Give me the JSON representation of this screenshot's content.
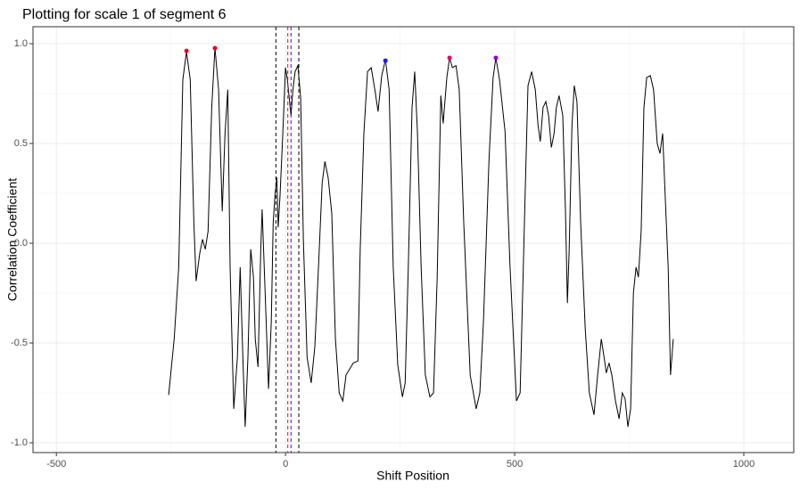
{
  "chart_data": {
    "type": "line",
    "title": "Plotting for scale 1 of segment 6",
    "x_label": "Shift Position",
    "y_label": "Correlation Coefficient",
    "xlim": [
      -551,
      1109
    ],
    "ylim": [
      -1.049,
      1.085
    ],
    "xticks": [
      -500,
      0,
      500,
      1000
    ],
    "yticks": [
      {
        "value": -1,
        "label": "-1.0"
      },
      {
        "value": -0.5,
        "label": "-0.5"
      },
      {
        "value": 0,
        "label": "0.0"
      },
      {
        "value": 0.5,
        "label": "0.5"
      },
      {
        "value": 1,
        "label": "1.0"
      }
    ],
    "xminor": [
      -250,
      250,
      750
    ],
    "yminor": [
      -0.75,
      -0.25,
      0.25,
      0.75
    ],
    "grid": true,
    "series": [
      {
        "color": "#000000",
        "x": [
          -255,
          -243,
          -233,
          -224,
          -216,
          -208,
          -200,
          -195,
          -187,
          -181,
          -175,
          -169,
          -161,
          -154,
          -146,
          -138,
          -132,
          -126,
          -121,
          -113,
          -105,
          -99,
          -93,
          -88,
          -82,
          -76,
          -70,
          -66,
          -60,
          -54,
          -51,
          -45,
          -37,
          -31,
          -27,
          -23,
          -19,
          -16,
          -12,
          -6,
          0,
          4,
          8,
          12,
          16,
          21,
          27,
          33,
          39,
          47,
          56,
          64,
          72,
          80,
          86,
          93,
          101,
          109,
          117,
          125,
          132,
          140,
          148,
          158,
          163,
          171,
          179,
          187,
          195,
          202,
          210,
          218,
          226,
          235,
          245,
          255,
          261,
          268,
          276,
          282,
          288,
          296,
          305,
          315,
          323,
          331,
          339,
          344,
          352,
          358,
          364,
          372,
          379,
          389,
          403,
          416,
          424,
          432,
          444,
          453,
          459,
          467,
          479,
          490,
          504,
          512,
          523,
          529,
          537,
          545,
          551,
          556,
          562,
          568,
          574,
          580,
          586,
          591,
          597,
          605,
          611,
          615,
          619,
          625,
          630,
          636,
          644,
          654,
          663,
          673,
          681,
          689,
          695,
          700,
          706,
          712,
          720,
          728,
          735,
          741,
          747,
          753,
          759,
          765,
          770,
          776,
          782,
          788,
          796,
          803,
          811,
          817,
          823,
          829,
          835,
          840,
          846
        ],
        "values": [
          -0.76,
          -0.48,
          -0.12,
          0.82,
          0.96,
          0.82,
          0.1,
          -0.19,
          -0.05,
          0.02,
          -0.03,
          0.06,
          0.68,
          0.98,
          0.77,
          0.16,
          0.55,
          0.77,
          -0.12,
          -0.83,
          -0.57,
          -0.12,
          -0.57,
          -0.92,
          -0.57,
          -0.03,
          -0.17,
          -0.48,
          -0.62,
          -0.03,
          0.17,
          -0.21,
          -0.73,
          -0.39,
          0.1,
          0.24,
          0.33,
          0.08,
          0.24,
          0.55,
          0.88,
          0.82,
          0.73,
          0.64,
          0.77,
          0.86,
          0.89,
          0.73,
          0.01,
          -0.57,
          -0.7,
          -0.52,
          -0.12,
          0.3,
          0.41,
          0.33,
          0.15,
          -0.48,
          -0.75,
          -0.79,
          -0.66,
          -0.63,
          -0.6,
          -0.59,
          -0.03,
          0.55,
          0.86,
          0.88,
          0.77,
          0.66,
          0.84,
          0.92,
          0.77,
          -0.12,
          -0.61,
          -0.77,
          -0.7,
          -0.12,
          0.68,
          0.86,
          0.55,
          -0.12,
          -0.66,
          -0.77,
          -0.75,
          -0.17,
          0.74,
          0.6,
          0.83,
          0.93,
          0.88,
          0.89,
          0.77,
          0.1,
          -0.66,
          -0.83,
          -0.75,
          -0.39,
          0.42,
          0.83,
          0.93,
          0.82,
          0.56,
          -0.12,
          -0.79,
          -0.75,
          0.26,
          0.79,
          0.86,
          0.77,
          0.59,
          0.51,
          0.68,
          0.71,
          0.64,
          0.48,
          0.55,
          0.68,
          0.74,
          0.64,
          0.15,
          -0.3,
          -0.03,
          0.59,
          0.79,
          0.71,
          0.1,
          -0.43,
          -0.75,
          -0.86,
          -0.66,
          -0.48,
          -0.57,
          -0.65,
          -0.6,
          -0.66,
          -0.79,
          -0.88,
          -0.75,
          -0.78,
          -0.92,
          -0.83,
          -0.25,
          -0.12,
          -0.17,
          0.06,
          0.68,
          0.83,
          0.84,
          0.77,
          0.5,
          0.45,
          0.55,
          0.21,
          -0.12,
          -0.66,
          -0.48
        ]
      }
    ],
    "points": {
      "x": [
        -216,
        -154,
        218,
        358,
        459
      ],
      "values": [
        0.964,
        0.978,
        0.915,
        0.929,
        0.929
      ],
      "colors": [
        "#e8001c",
        "#e8001c",
        "#1a1aff",
        "#e0006e",
        "#9c00c8"
      ]
    },
    "vlines": [
      {
        "x": -21,
        "color": "#000000"
      },
      {
        "x": 5,
        "color": "#ff0000"
      },
      {
        "x": 12,
        "color": "#1a1aff"
      },
      {
        "x": 29,
        "color": "#000000"
      }
    ]
  }
}
